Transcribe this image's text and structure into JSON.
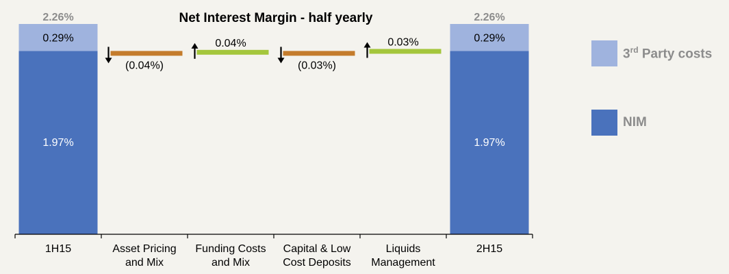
{
  "chart_data": {
    "type": "waterfall",
    "title": "Net Interest Margin - half yearly",
    "categories": [
      "1H15",
      "Asset Pricing and Mix",
      "Funding Costs and Mix",
      "Capital & Low Cost Deposits",
      "Liquids Management",
      "2H15"
    ],
    "category_lines": [
      [
        "1H15"
      ],
      [
        "Asset Pricing",
        "and Mix"
      ],
      [
        "Funding Costs",
        "and Mix"
      ],
      [
        "Capital & Low",
        "Cost Deposits"
      ],
      [
        "Liquids",
        "Management"
      ],
      [
        "2H15"
      ]
    ],
    "totals": [
      {
        "category": "1H15",
        "nim": 1.97,
        "third_party": 0.29,
        "total": 2.26,
        "nim_label": "1.97%",
        "third_party_label": "0.29%",
        "total_label": "2.26%"
      },
      {
        "category": "2H15",
        "nim": 1.97,
        "third_party": 0.29,
        "total": 2.26,
        "nim_label": "1.97%",
        "third_party_label": "0.29%",
        "total_label": "2.26%"
      }
    ],
    "changes": [
      {
        "category": "Asset Pricing and Mix",
        "value": -0.04,
        "label": "(0.04%)",
        "direction": "down",
        "color": "#c47c2c"
      },
      {
        "category": "Funding Costs and Mix",
        "value": 0.04,
        "label": "0.04%",
        "direction": "up",
        "color": "#a4c63c"
      },
      {
        "category": "Capital & Low Cost Deposits",
        "value": -0.03,
        "label": "(0.03%)",
        "direction": "down",
        "color": "#c47c2c"
      },
      {
        "category": "Liquids Management",
        "value": 0.03,
        "label": "0.03%",
        "direction": "up",
        "color": "#a4c63c"
      }
    ],
    "series": [
      {
        "name": "NIM",
        "color": "#4a72bc"
      },
      {
        "name": "3rd Party costs",
        "color": "#9fb3de"
      }
    ],
    "ylim": [
      0,
      2.26
    ],
    "legend_position": "right"
  },
  "legend": {
    "third_party_main": "3",
    "third_party_sup": "rd",
    "third_party_rest": " Party costs",
    "nim": "NIM"
  },
  "colors": {
    "nim": "#4a72bc",
    "third_party": "#9fb3de",
    "negative": "#c47c2c",
    "positive": "#a4c63c",
    "total_label": "#8c8c8c"
  }
}
